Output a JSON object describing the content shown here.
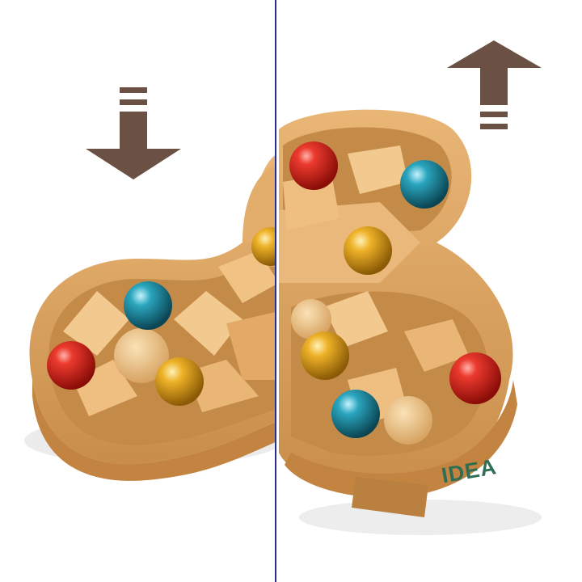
{
  "image": {
    "logo_text": "IDEA",
    "logo_subtext": "",
    "colors": {
      "background": "#ffffff",
      "arrow": "#6b5143",
      "divider": "#2c2c8a",
      "wood_light": "#f0c384",
      "wood_mid": "#dba462",
      "wood_dark": "#b37a3e",
      "logo": "#2f6d55",
      "marble_red": "#d2231c",
      "marble_blue": "#1c8aa0",
      "marble_amber": "#e0a21a"
    },
    "arrows": [
      {
        "direction": "down",
        "icon": "arrow-down-icon"
      },
      {
        "direction": "up",
        "icon": "arrow-up-icon"
      }
    ]
  }
}
